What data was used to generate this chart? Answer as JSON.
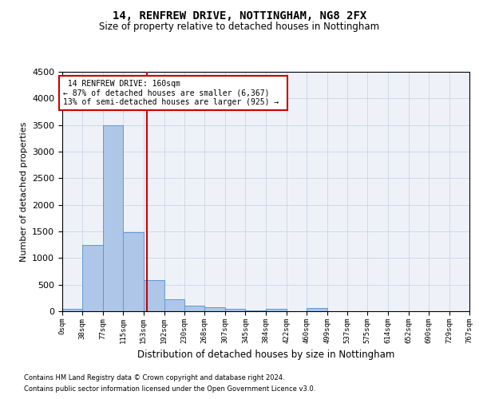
{
  "title1": "14, RENFREW DRIVE, NOTTINGHAM, NG8 2FX",
  "title2": "Size of property relative to detached houses in Nottingham",
  "xlabel": "Distribution of detached houses by size in Nottingham",
  "ylabel": "Number of detached properties",
  "footnote1": "Contains HM Land Registry data © Crown copyright and database right 2024.",
  "footnote2": "Contains public sector information licensed under the Open Government Licence v3.0.",
  "annotation_line1": "14 RENFREW DRIVE: 160sqm",
  "annotation_line2": "← 87% of detached houses are smaller (6,367)",
  "annotation_line3": "13% of semi-detached houses are larger (925) →",
  "property_size": 160,
  "bin_edges": [
    0,
    38,
    77,
    115,
    153,
    192,
    230,
    268,
    307,
    345,
    384,
    422,
    460,
    499,
    537,
    575,
    614,
    652,
    690,
    729,
    767
  ],
  "bar_heights": [
    50,
    1250,
    3500,
    1480,
    580,
    230,
    110,
    80,
    40,
    10,
    50,
    0,
    60,
    0,
    0,
    0,
    0,
    0,
    0,
    0
  ],
  "bar_color": "#aec6e8",
  "bar_edge_color": "#5b9bd5",
  "red_line_color": "#cc0000",
  "red_box_color": "#cc0000",
  "grid_color": "#d0d8e8",
  "background_color": "#eef2f8",
  "ylim": [
    0,
    4500
  ],
  "yticks": [
    0,
    500,
    1000,
    1500,
    2000,
    2500,
    3000,
    3500,
    4000,
    4500
  ]
}
